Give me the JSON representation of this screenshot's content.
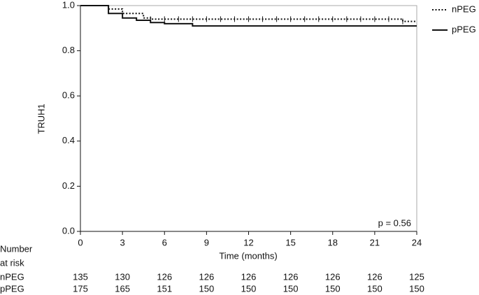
{
  "chart_data": {
    "type": "step",
    "ylabel": "TRUH1",
    "xlabel": "Time (months)",
    "annotation": "p = 0.56",
    "x": [
      0,
      2,
      3,
      4,
      4.5,
      5,
      6,
      8,
      23,
      24
    ],
    "series": [
      {
        "name": "nPEG",
        "color": "#111111",
        "dash": "dotted",
        "values": [
          1,
          0.985,
          0.965,
          0.965,
          0.945,
          0.94,
          0.94,
          0.94,
          0.93,
          0.93
        ],
        "censored": [
          5,
          6,
          7,
          8,
          9,
          10,
          11,
          12,
          13,
          14,
          15,
          16,
          17,
          18,
          19,
          20,
          21,
          22,
          23
        ]
      },
      {
        "name": "pPEG",
        "color": "#111111",
        "dash": "solid",
        "values": [
          1,
          0.965,
          0.945,
          0.935,
          0.935,
          0.925,
          0.92,
          0.91,
          0.91,
          0.91
        ]
      }
    ],
    "xlim": [
      0,
      24
    ],
    "xticks": [
      0,
      3,
      6,
      9,
      12,
      15,
      18,
      21,
      24
    ],
    "ylim": [
      0,
      1
    ],
    "yticks": [
      {
        "value": 0,
        "label": "0.0"
      },
      0.2,
      0.4,
      0.6,
      0.8,
      {
        "value": 1,
        "label": "1.0"
      }
    ],
    "legend": "right-top",
    "risk_table": {
      "title": [
        "Number",
        "at risk"
      ],
      "rows": [
        {
          "name": "nPEG",
          "values": [
            135,
            130,
            126,
            126,
            126,
            126,
            126,
            126,
            125
          ]
        },
        {
          "name": "pPEG",
          "values": [
            175,
            165,
            151,
            150,
            150,
            150,
            150,
            150,
            150
          ]
        }
      ]
    }
  }
}
